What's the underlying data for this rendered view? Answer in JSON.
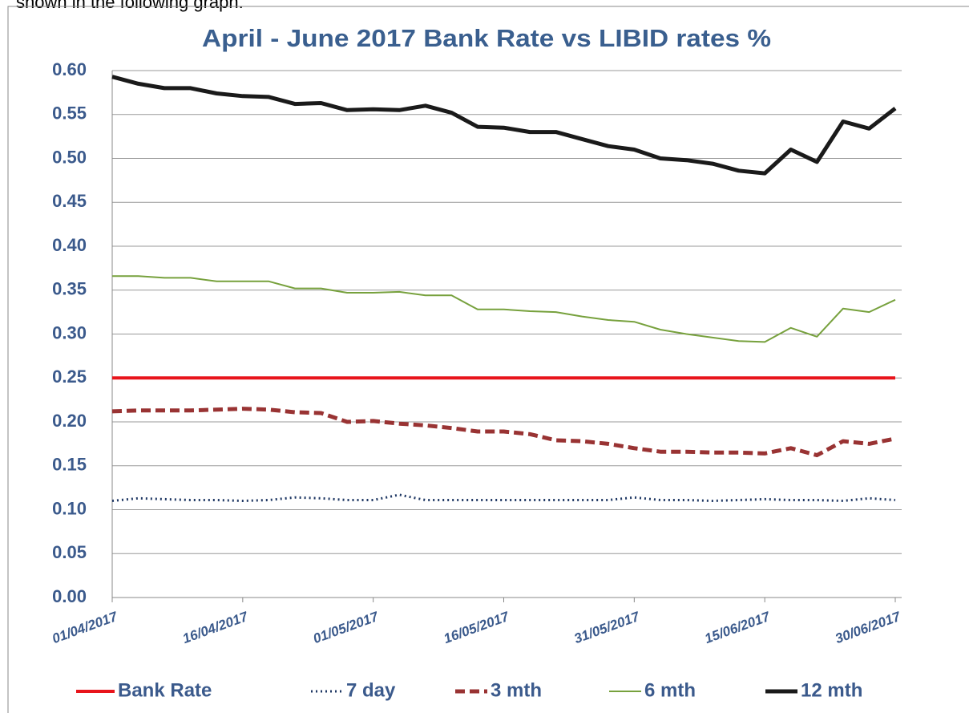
{
  "page_text": "shown in the following graph.",
  "chart_data": {
    "type": "line",
    "title": "April - June 2017 Bank Rate vs LIBID rates %",
    "x": [
      "01/04/2017",
      "04/04/2017",
      "07/04/2017",
      "10/04/2017",
      "13/04/2017",
      "16/04/2017",
      "19/04/2017",
      "22/04/2017",
      "25/04/2017",
      "28/04/2017",
      "01/05/2017",
      "04/05/2017",
      "07/05/2017",
      "10/05/2017",
      "13/05/2017",
      "16/05/2017",
      "19/05/2017",
      "22/05/2017",
      "25/05/2017",
      "28/05/2017",
      "31/05/2017",
      "03/06/2017",
      "06/06/2017",
      "09/06/2017",
      "12/06/2017",
      "15/06/2017",
      "18/06/2017",
      "21/06/2017",
      "24/06/2017",
      "27/06/2017",
      "30/06/2017"
    ],
    "xlim": [
      "01/04/2017",
      "30/06/2017"
    ],
    "xticks": [
      "01/04/2017",
      "16/04/2017",
      "01/05/2017",
      "16/05/2017",
      "31/05/2017",
      "15/06/2017",
      "30/06/2017"
    ],
    "ylim": [
      0,
      0.6
    ],
    "yticks": [
      {
        "value": 0,
        "label": "0.00"
      },
      {
        "value": 0.05,
        "label": "0.05"
      },
      {
        "value": 0.1,
        "label": "0.10"
      },
      {
        "value": 0.15,
        "label": "0.15"
      },
      {
        "value": 0.2,
        "label": "0.20"
      },
      {
        "value": 0.25,
        "label": "0.25"
      },
      {
        "value": 0.3,
        "label": "0.30"
      },
      {
        "value": 0.35,
        "label": "0.35"
      },
      {
        "value": 0.4,
        "label": "0.40"
      },
      {
        "value": 0.45,
        "label": "0.45"
      },
      {
        "value": 0.5,
        "label": "0.50"
      },
      {
        "value": 0.55,
        "label": "0.55"
      },
      {
        "value": 0.6,
        "label": "0.60"
      }
    ],
    "grid": true,
    "legend": "bottom",
    "series": [
      {
        "name": "Bank Rate",
        "color": "#e8141b",
        "line_style": "solid",
        "values": [
          0.25,
          0.25,
          0.25,
          0.25,
          0.25,
          0.25,
          0.25,
          0.25,
          0.25,
          0.25,
          0.25,
          0.25,
          0.25,
          0.25,
          0.25,
          0.25,
          0.25,
          0.25,
          0.25,
          0.25,
          0.25,
          0.25,
          0.25,
          0.25,
          0.25,
          0.25,
          0.25,
          0.25,
          0.25,
          0.25,
          0.25
        ]
      },
      {
        "name": "7 day",
        "color": "#1f3864",
        "line_style": "dotted",
        "values": [
          0.11,
          0.113,
          0.112,
          0.111,
          0.111,
          0.11,
          0.111,
          0.114,
          0.113,
          0.111,
          0.111,
          0.117,
          0.111,
          0.111,
          0.111,
          0.111,
          0.111,
          0.111,
          0.111,
          0.111,
          0.114,
          0.111,
          0.111,
          0.11,
          0.111,
          0.112,
          0.111,
          0.111,
          0.11,
          0.113,
          0.111
        ]
      },
      {
        "name": "3 mth",
        "color": "#993333",
        "line_style": "dashed",
        "values": [
          0.212,
          0.213,
          0.213,
          0.213,
          0.214,
          0.215,
          0.214,
          0.211,
          0.21,
          0.2,
          0.201,
          0.198,
          0.196,
          0.193,
          0.189,
          0.189,
          0.186,
          0.179,
          0.178,
          0.175,
          0.17,
          0.166,
          0.166,
          0.165,
          0.165,
          0.164,
          0.17,
          0.162,
          0.178,
          0.175,
          0.181
        ]
      },
      {
        "name": "6 mth",
        "color": "#77a13d",
        "line_style": "solid",
        "values": [
          0.366,
          0.366,
          0.364,
          0.364,
          0.36,
          0.36,
          0.36,
          0.352,
          0.352,
          0.347,
          0.347,
          0.348,
          0.344,
          0.344,
          0.328,
          0.328,
          0.326,
          0.325,
          0.32,
          0.316,
          0.314,
          0.305,
          0.3,
          0.296,
          0.292,
          0.291,
          0.307,
          0.297,
          0.329,
          0.325,
          0.339
        ]
      },
      {
        "name": "12 mth",
        "color": "#1a1a1a",
        "line_style": "solid",
        "values": [
          0.593,
          0.585,
          0.58,
          0.58,
          0.574,
          0.571,
          0.57,
          0.562,
          0.563,
          0.555,
          0.556,
          0.555,
          0.56,
          0.552,
          0.536,
          0.535,
          0.53,
          0.53,
          0.522,
          0.514,
          0.51,
          0.5,
          0.498,
          0.494,
          0.486,
          0.483,
          0.51,
          0.496,
          0.542,
          0.534,
          0.557
        ]
      }
    ]
  }
}
